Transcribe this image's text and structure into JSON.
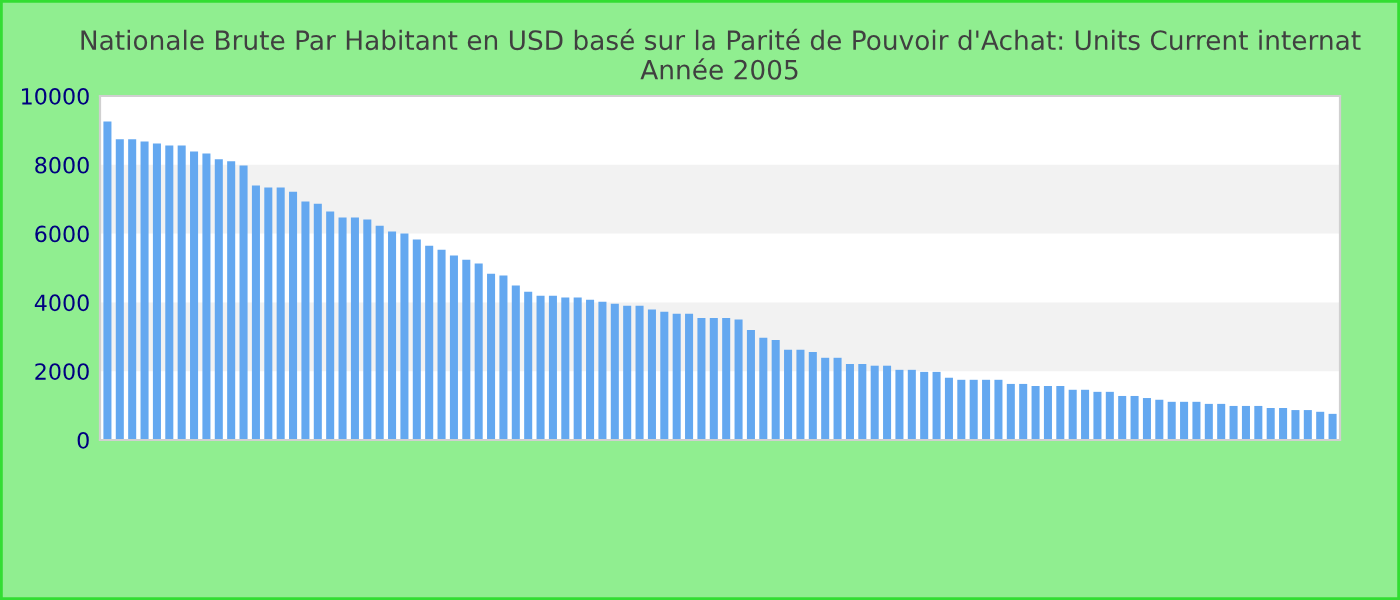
{
  "chart_data": {
    "type": "bar",
    "title": "Nationale Brute Par Habitant en USD basé sur la Parité de Pouvoir d'Achat: Units Current internat\nAnnée 2005",
    "categories": [
      null,
      null,
      null,
      null,
      null,
      null,
      null,
      null,
      null,
      null,
      null,
      null,
      null,
      null,
      null,
      null,
      null,
      null,
      null,
      null,
      null,
      null,
      null,
      null,
      null,
      null,
      null,
      null,
      null,
      null,
      null,
      null,
      null,
      null,
      null,
      null,
      null,
      null,
      null,
      null,
      null,
      null,
      null,
      null,
      null,
      null,
      null,
      null,
      null,
      null,
      null,
      null,
      null,
      null,
      null,
      null,
      null,
      null,
      null,
      null,
      null,
      null,
      null,
      null,
      null,
      null,
      null,
      null,
      null,
      null,
      null,
      null,
      null,
      null,
      null,
      null,
      null,
      null,
      null,
      null,
      null,
      null,
      null,
      null,
      null,
      null,
      null,
      null,
      null,
      null,
      null,
      null,
      null,
      null,
      null,
      null,
      null,
      null,
      null,
      null
    ],
    "values": [
      9260,
      8740,
      8740,
      8680,
      8620,
      8560,
      8560,
      8390,
      8330,
      8160,
      8100,
      7980,
      7400,
      7340,
      7340,
      7220,
      6930,
      6870,
      6640,
      6470,
      6470,
      6410,
      6230,
      6060,
      6000,
      5830,
      5650,
      5530,
      5360,
      5240,
      5130,
      4830,
      4780,
      4490,
      4310,
      4190,
      4190,
      4140,
      4140,
      4080,
      4020,
      3960,
      3900,
      3900,
      3790,
      3730,
      3670,
      3670,
      3550,
      3550,
      3550,
      3500,
      3200,
      2970,
      2910,
      2620,
      2620,
      2560,
      2390,
      2390,
      2210,
      2210,
      2160,
      2160,
      2040,
      2040,
      1980,
      1980,
      1810,
      1750,
      1750,
      1750,
      1750,
      1630,
      1630,
      1570,
      1570,
      1570,
      1460,
      1460,
      1400,
      1400,
      1280,
      1280,
      1220,
      1170,
      1110,
      1110,
      1110,
      1050,
      1050,
      990,
      990,
      990,
      930,
      930,
      870,
      870,
      820,
      760
    ],
    "color": "#64a8f0",
    "ylim": [
      0,
      10000
    ],
    "yticks": [
      0,
      2000,
      4000,
      6000,
      8000,
      10000
    ],
    "bands": [
      {
        "axis": "y",
        "from": 2000,
        "to": 4000,
        "color": "#f2f2f2"
      },
      {
        "axis": "y",
        "from": 6000,
        "to": 8000,
        "color": "#f2f2f2"
      }
    ]
  }
}
